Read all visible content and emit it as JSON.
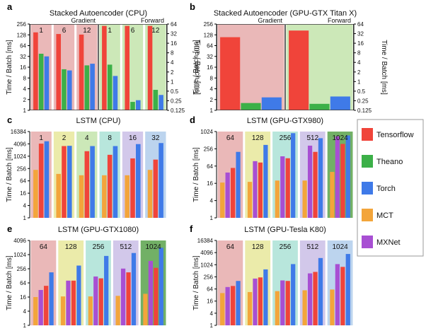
{
  "figure": {
    "legend": [
      {
        "name": "Tensorflow",
        "color": "#f0443a"
      },
      {
        "name": "Theano",
        "color": "#3cb048"
      },
      {
        "name": "Torch",
        "color": "#3f7ae8"
      },
      {
        "name": "MCT",
        "color": "#f3a53b"
      },
      {
        "name": "MXNet",
        "color": "#a84fd3"
      }
    ],
    "panel_colors": {
      "pink": "#eab8b8",
      "green": "#cce8b8",
      "yellow": "#ebebaa",
      "teal": "#b8e6dc",
      "lavender": "#d2c8ea",
      "dkgreen": "#72b066",
      "blue": "#bcd4ee",
      "gray": "#d8d8d8"
    }
  },
  "chart_data": [
    {
      "panel_letter": "a",
      "type": "bar",
      "title": "Stacked Autoencoder (CPU)",
      "ylabel": "Time / Batch [ms]",
      "ylabel_right": "Time / Batch [ms]",
      "scale": "log2",
      "ylim": [
        1,
        256
      ],
      "ylim_right": [
        0.125,
        64
      ],
      "yticks": [
        "1",
        "2",
        "4",
        "8",
        "16",
        "32",
        "64",
        "128",
        "256"
      ],
      "yticks_right": [
        "0.125",
        "0.25",
        "0.5",
        "1",
        "2",
        "4",
        "8",
        "16",
        "32",
        "64"
      ],
      "section_labels": [
        "Gradient",
        "Forward"
      ],
      "series": [
        "Tensorflow",
        "Theano",
        "Torch"
      ],
      "groups": [
        {
          "label": "1",
          "section": "Gradient",
          "bg": "pink",
          "values": [
            150,
            38,
            32
          ]
        },
        {
          "label": "6",
          "section": "Gradient",
          "bg": "pink",
          "values": [
            135,
            14,
            13
          ]
        },
        {
          "label": "12",
          "section": "Gradient",
          "bg": "pink",
          "values": [
            130,
            18,
            20
          ]
        },
        {
          "label": "1",
          "section": "Forward",
          "bg": "green",
          "values": [
            56,
            3.4,
            1.5
          ],
          "axis": "right"
        },
        {
          "label": "6",
          "section": "Forward",
          "bg": "green",
          "values": [
            56,
            0.23,
            0.26
          ],
          "axis": "right"
        },
        {
          "label": "12",
          "section": "Forward",
          "bg": "green",
          "values": [
            56,
            0.55,
            0.38
          ],
          "axis": "right"
        }
      ]
    },
    {
      "panel_letter": "b",
      "type": "bar",
      "title": "Stacked Autoencoder (GPU-GTX Titan X)",
      "ylabel": "Time / Batch [ms]",
      "ylabel_right": "Time / Batch [ms]",
      "scale": "log2",
      "ylim": [
        1,
        256
      ],
      "ylim_right": [
        0.125,
        64
      ],
      "yticks": [
        "1",
        "2",
        "4",
        "8",
        "16",
        "32",
        "64",
        "128",
        "256"
      ],
      "yticks_right": [
        "0.125",
        "0.25",
        "0.5",
        "1",
        "2",
        "4",
        "8",
        "16",
        "32",
        "64"
      ],
      "section_labels": [
        "Gradient",
        "Forward"
      ],
      "series": [
        "Tensorflow",
        "Theano",
        "Torch"
      ],
      "groups": [
        {
          "label": "",
          "section": "Gradient",
          "bg": "pink",
          "values": [
            110,
            1.6,
            2.3
          ]
        },
        {
          "label": "",
          "section": "Forward",
          "bg": "green",
          "values": [
            40,
            0.2,
            0.34
          ],
          "axis": "right"
        }
      ]
    },
    {
      "panel_letter": "c",
      "type": "bar",
      "title": "LSTM (CPU)",
      "ylabel": "Time / Batch [ms]",
      "scale": "log2",
      "ylim": [
        1,
        16384
      ],
      "yticks": [
        "1",
        "4",
        "16",
        "64",
        "256",
        "1024",
        "4096",
        "16384"
      ],
      "series": [
        "MCT",
        "Tensorflow",
        "Torch"
      ],
      "groups": [
        {
          "label": "1",
          "bg": "pink",
          "values": [
            220,
            4200,
            5500
          ]
        },
        {
          "label": "2",
          "bg": "yellow",
          "values": [
            140,
            3200,
            3300
          ]
        },
        {
          "label": "4",
          "bg": "green",
          "values": [
            120,
            1800,
            3200
          ]
        },
        {
          "label": "8",
          "bg": "teal",
          "values": [
            120,
            1200,
            3200
          ]
        },
        {
          "label": "16",
          "bg": "lavender",
          "values": [
            120,
            800,
            4000
          ]
        },
        {
          "label": "32",
          "bg": "blue",
          "values": [
            220,
            700,
            4500
          ]
        }
      ]
    },
    {
      "panel_letter": "d",
      "type": "bar",
      "title": "LSTM (GPU-GTX980)",
      "ylabel": "Time / Batch [ms]",
      "scale": "log2",
      "ylim": [
        1,
        1024
      ],
      "yticks": [
        "1",
        "4",
        "16",
        "64",
        "256",
        "1024"
      ],
      "series": [
        "MCT",
        "MXNet",
        "Tensorflow",
        "Torch"
      ],
      "groups": [
        {
          "label": "64",
          "bg": "pink",
          "values": [
            17,
            38,
            55,
            200
          ]
        },
        {
          "label": "128",
          "bg": "yellow",
          "values": [
            18,
            95,
            85,
            350
          ]
        },
        {
          "label": "256",
          "bg": "teal",
          "values": [
            20,
            140,
            120,
            900
          ]
        },
        {
          "label": "512",
          "bg": "lavender",
          "values": [
            20,
            330,
            200,
            600
          ]
        },
        {
          "label": "1024",
          "bg": "dkgreen",
          "values": [
            40,
            700,
            380,
            750
          ]
        }
      ]
    },
    {
      "panel_letter": "e",
      "type": "bar",
      "title": "LSTM (GPU-GTX1080)",
      "ylabel": "Time / Batch [ms]",
      "scale": "log2",
      "ylim": [
        1,
        4096
      ],
      "yticks": [
        "1",
        "4",
        "16",
        "64",
        "256",
        "1024",
        "4096"
      ],
      "series": [
        "MCT",
        "MXNet",
        "Tensorflow",
        "Torch"
      ],
      "groups": [
        {
          "label": "64",
          "bg": "pink",
          "values": [
            16,
            32,
            48,
            180
          ]
        },
        {
          "label": "128",
          "bg": "yellow",
          "values": [
            17,
            80,
            80,
            350
          ]
        },
        {
          "label": "256",
          "bg": "teal",
          "values": [
            17,
            120,
            100,
            900
          ]
        },
        {
          "label": "512",
          "bg": "lavender",
          "values": [
            18,
            260,
            180,
            1200
          ]
        },
        {
          "label": "1024",
          "bg": "dkgreen",
          "values": [
            22,
            550,
            280,
            2000
          ]
        }
      ]
    },
    {
      "panel_letter": "f",
      "type": "bar",
      "title": "LSTM (GPU-Tesla K80)",
      "ylabel": "Time / Batch [ms]",
      "scale": "log2",
      "ylim": [
        1,
        16384
      ],
      "yticks": [
        "1",
        "4",
        "16",
        "64",
        "256",
        "1024",
        "4096",
        "16384"
      ],
      "series": [
        "MCT",
        "MXNet",
        "Tensorflow",
        "Torch"
      ],
      "groups": [
        {
          "label": "64",
          "bg": "pink",
          "values": [
            40,
            80,
            90,
            160
          ]
        },
        {
          "label": "128",
          "bg": "yellow",
          "values": [
            45,
            210,
            240,
            600
          ]
        },
        {
          "label": "256",
          "bg": "teal",
          "values": [
            50,
            170,
            160,
            1100
          ]
        },
        {
          "label": "512",
          "bg": "lavender",
          "values": [
            55,
            380,
            450,
            2200
          ]
        },
        {
          "label": "1024",
          "bg": "blue",
          "values": [
            60,
            1100,
            800,
            3500
          ]
        }
      ]
    }
  ]
}
